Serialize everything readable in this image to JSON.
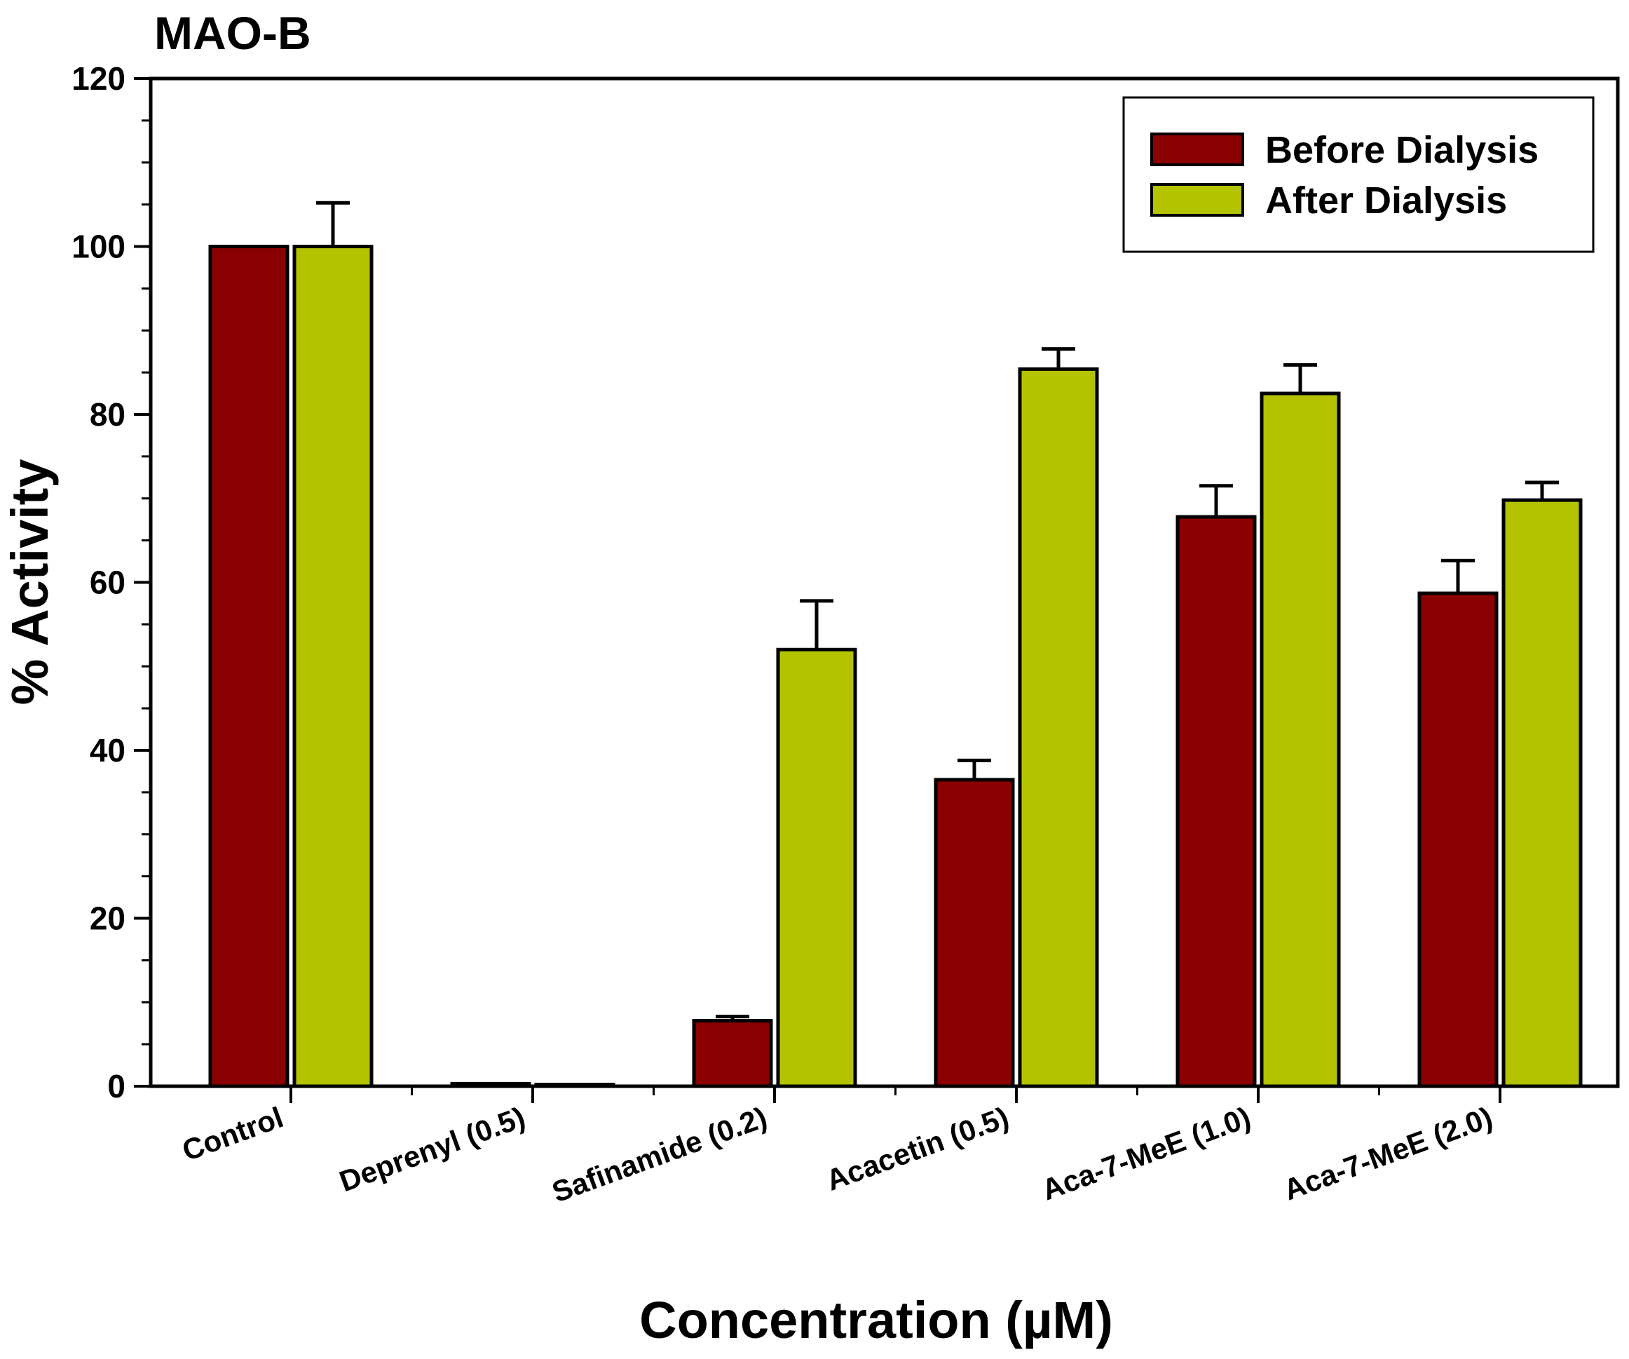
{
  "chart_data": {
    "type": "bar",
    "title": "MAO-B",
    "xlabel": "Concentration (µM)",
    "ylabel": "% Activity",
    "ylim": [
      0,
      120
    ],
    "yticks": [
      "0",
      "20",
      "40",
      "60",
      "80",
      "100",
      "120"
    ],
    "categories": [
      "Control",
      "Deprenyl (0.5)",
      "Safinamide (0.2)",
      "Acacetin (0.5)",
      "Aca-7-MeE (1.0)",
      "Aca-7-MeE (2.0)"
    ],
    "series": [
      {
        "name": "Before Dialysis",
        "color": "#8b0000",
        "values": [
          100,
          0.3,
          7.8,
          36.5,
          67.8,
          58.7
        ],
        "errors": [
          0,
          0,
          0.5,
          2.3,
          3.7,
          3.9
        ]
      },
      {
        "name": "After Dialysis",
        "color": "#b3c300",
        "values": [
          100,
          0.2,
          52.0,
          85.4,
          82.5,
          69.8
        ],
        "errors": [
          5.2,
          0,
          5.8,
          2.4,
          3.4,
          2.1
        ]
      }
    ],
    "grid": false,
    "legend_position": "top-right"
  }
}
